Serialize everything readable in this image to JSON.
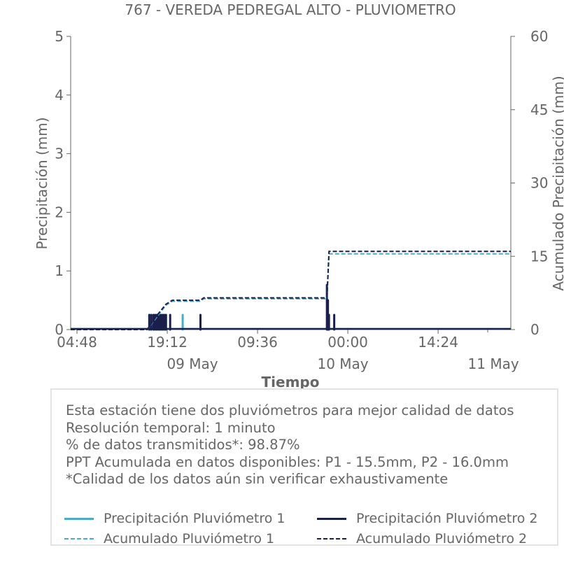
{
  "chart_data": {
    "type": "line",
    "title": "767 - VEREDA PEDREGAL ALTO - PLUVIOMETRO",
    "xlabel": "Tiempo",
    "ylabel": "Precipitación (mm)",
    "y2label": "Acumulado Precipitación (mm)",
    "ylim": [
      0,
      5
    ],
    "y2lim": [
      0,
      60
    ],
    "yticks": [
      "0",
      "1",
      "2",
      "3",
      "4",
      "5"
    ],
    "y2ticks": [
      "0",
      "15",
      "30",
      "45",
      "60"
    ],
    "xlim": [
      "2024-05-08T04:48",
      "2024-05-11T03:00"
    ],
    "xticks": [
      "04:48",
      "19:12",
      "09:36",
      "00:00",
      "14:24"
    ],
    "date_ticks": [
      "09 May",
      "10 May",
      "11 May"
    ],
    "grid": false,
    "series": [
      {
        "name": "Precipitación Pluviómetro 1",
        "axis": "left",
        "style": "solid",
        "color": "#4bacc6",
        "points": [
          [
            "2024-05-08T17:30",
            0.25
          ],
          [
            "2024-05-08T18:00",
            0.25
          ],
          [
            "2024-05-08T18:30",
            0.25
          ],
          [
            "2024-05-08T19:00",
            0.25
          ],
          [
            "2024-05-08T19:30",
            0.25
          ],
          [
            "2024-05-08T20:00",
            0.25
          ],
          [
            "2024-05-08T22:40",
            0.25
          ],
          [
            "2024-05-09T21:55",
            0.25
          ]
        ]
      },
      {
        "name": "Precipitación Pluviómetro 2",
        "axis": "left",
        "style": "solid",
        "color": "#1b1f4a",
        "points": [
          [
            "2024-05-08T17:20",
            0.25
          ],
          [
            "2024-05-08T17:40",
            0.25
          ],
          [
            "2024-05-08T18:00",
            0.25
          ],
          [
            "2024-05-08T18:15",
            0.25
          ],
          [
            "2024-05-08T18:30",
            0.25
          ],
          [
            "2024-05-08T18:45",
            0.25
          ],
          [
            "2024-05-08T19:00",
            0.25
          ],
          [
            "2024-05-08T19:15",
            0.25
          ],
          [
            "2024-05-08T19:30",
            0.25
          ],
          [
            "2024-05-08T19:45",
            0.25
          ],
          [
            "2024-05-08T20:00",
            0.25
          ],
          [
            "2024-05-08T20:40",
            0.25
          ],
          [
            "2024-05-09T01:30",
            0.25
          ],
          [
            "2024-05-09T21:40",
            0.76
          ],
          [
            "2024-05-09T21:50",
            0.5
          ],
          [
            "2024-05-09T22:00",
            0.25
          ],
          [
            "2024-05-09T22:50",
            0.25
          ]
        ]
      },
      {
        "name": "Acumulado Pluviómetro 1",
        "axis": "right",
        "style": "dashed",
        "color": "#4bacc6",
        "points": [
          [
            "2024-05-08T04:48",
            0
          ],
          [
            "2024-05-08T17:00",
            0
          ],
          [
            "2024-05-08T18:30",
            2.5
          ],
          [
            "2024-05-08T20:00",
            5.0
          ],
          [
            "2024-05-08T21:00",
            5.8
          ],
          [
            "2024-05-09T01:30",
            5.8
          ],
          [
            "2024-05-09T02:00",
            6.3
          ],
          [
            "2024-05-09T21:40",
            6.3
          ],
          [
            "2024-05-09T22:00",
            15.5
          ],
          [
            "2024-05-11T03:00",
            15.5
          ]
        ]
      },
      {
        "name": "Acumulado Pluviómetro 2",
        "axis": "right",
        "style": "dashed",
        "color": "#1b1f4a",
        "points": [
          [
            "2024-05-08T04:48",
            0
          ],
          [
            "2024-05-08T17:00",
            0
          ],
          [
            "2024-05-08T18:30",
            2.8
          ],
          [
            "2024-05-08T20:00",
            5.2
          ],
          [
            "2024-05-08T21:00",
            6.0
          ],
          [
            "2024-05-09T01:30",
            6.0
          ],
          [
            "2024-05-09T02:00",
            6.5
          ],
          [
            "2024-05-09T21:40",
            6.5
          ],
          [
            "2024-05-09T22:00",
            16.0
          ],
          [
            "2024-05-11T03:00",
            16.0
          ]
        ]
      }
    ]
  },
  "info": {
    "line1": "Esta estación tiene dos pluviómetros para mejor calidad de datos",
    "line2": "Resolución temporal: 1 minuto",
    "line3": "% de datos transmitidos*: 98.87%",
    "line4": "PPT Acumulada en datos disponibles: P1 - 15.5mm, P2 - 16.0mm",
    "line5": "*Calidad de los datos aún sin verificar exhaustivamente"
  },
  "legend": [
    {
      "label": "Precipitación Pluviómetro 1",
      "color": "#4bacc6",
      "style": "solid"
    },
    {
      "label": "Precipitación Pluviómetro 2",
      "color": "#1b1f4a",
      "style": "solid"
    },
    {
      "label": "Acumulado Pluviómetro 1",
      "color": "#4bacc6",
      "style": "dashed"
    },
    {
      "label": "Acumulado Pluviómetro 2",
      "color": "#1b1f4a",
      "style": "dashed"
    }
  ]
}
